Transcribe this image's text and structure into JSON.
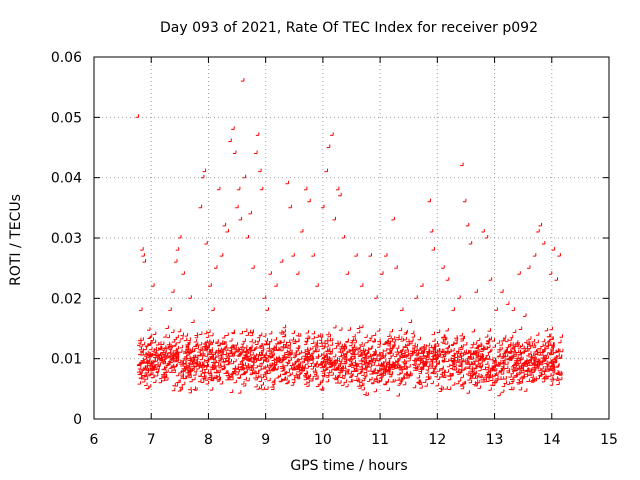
{
  "chart_data": {
    "type": "scatter",
    "title": "Day 093 of 2021, Rate Of TEC Index for receiver p092",
    "xlabel": "GPS time / hours",
    "ylabel": "ROTI / TECUs",
    "xlim": [
      6,
      15
    ],
    "ylim": [
      0,
      0.06
    ],
    "xticks": [
      6,
      7,
      8,
      9,
      10,
      11,
      12,
      13,
      14,
      15
    ],
    "yticks": [
      0,
      0.01,
      0.02,
      0.03,
      0.04,
      0.05,
      0.06
    ],
    "xtick_labels": [
      "6",
      "7",
      "8",
      "9",
      "10",
      "11",
      "12",
      "13",
      "14",
      "15"
    ],
    "ytick_labels": [
      "0",
      "0.01",
      "0.02",
      "0.03",
      "0.04",
      "0.05",
      "0.06"
    ],
    "grid": true,
    "marker": "plus",
    "color": "#ff0000",
    "series": [
      {
        "name": "p092",
        "points": [
          [
            6.78,
            0.05
          ],
          [
            6.8,
            0.009
          ],
          [
            6.82,
            0.013
          ],
          [
            6.84,
            0.018
          ],
          [
            6.86,
            0.028
          ],
          [
            6.88,
            0.027
          ],
          [
            6.9,
            0.026
          ],
          [
            6.92,
            0.007
          ],
          [
            6.94,
            0.012
          ],
          [
            6.96,
            0.005
          ],
          [
            7.05,
            0.022
          ],
          [
            7.08,
            0.014
          ],
          [
            7.12,
            0.009
          ],
          [
            7.18,
            0.006
          ],
          [
            7.22,
            0.011
          ],
          [
            7.3,
            0.015
          ],
          [
            7.35,
            0.018
          ],
          [
            7.4,
            0.021
          ],
          [
            7.45,
            0.026
          ],
          [
            7.48,
            0.028
          ],
          [
            7.52,
            0.03
          ],
          [
            7.58,
            0.024
          ],
          [
            7.62,
            0.013
          ],
          [
            7.7,
            0.02
          ],
          [
            7.75,
            0.016
          ],
          [
            7.8,
            0.012
          ],
          [
            7.88,
            0.035
          ],
          [
            7.92,
            0.04
          ],
          [
            7.95,
            0.041
          ],
          [
            7.98,
            0.029
          ],
          [
            8.05,
            0.022
          ],
          [
            8.1,
            0.018
          ],
          [
            8.15,
            0.025
          ],
          [
            8.2,
            0.038
          ],
          [
            8.25,
            0.027
          ],
          [
            8.3,
            0.032
          ],
          [
            8.35,
            0.031
          ],
          [
            8.4,
            0.046
          ],
          [
            8.45,
            0.048
          ],
          [
            8.48,
            0.044
          ],
          [
            8.52,
            0.035
          ],
          [
            8.55,
            0.038
          ],
          [
            8.58,
            0.033
          ],
          [
            8.62,
            0.056
          ],
          [
            8.65,
            0.04
          ],
          [
            8.7,
            0.03
          ],
          [
            8.75,
            0.034
          ],
          [
            8.8,
            0.025
          ],
          [
            8.85,
            0.044
          ],
          [
            8.88,
            0.047
          ],
          [
            8.92,
            0.041
          ],
          [
            8.95,
            0.038
          ],
          [
            9.0,
            0.02
          ],
          [
            9.05,
            0.018
          ],
          [
            9.1,
            0.024
          ],
          [
            9.2,
            0.022
          ],
          [
            9.3,
            0.026
          ],
          [
            9.4,
            0.039
          ],
          [
            9.45,
            0.035
          ],
          [
            9.5,
            0.027
          ],
          [
            9.58,
            0.024
          ],
          [
            9.65,
            0.031
          ],
          [
            9.72,
            0.038
          ],
          [
            9.78,
            0.036
          ],
          [
            9.85,
            0.027
          ],
          [
            9.92,
            0.022
          ],
          [
            10.02,
            0.035
          ],
          [
            10.08,
            0.041
          ],
          [
            10.12,
            0.045
          ],
          [
            10.18,
            0.047
          ],
          [
            10.22,
            0.033
          ],
          [
            10.28,
            0.038
          ],
          [
            10.32,
            0.037
          ],
          [
            10.38,
            0.03
          ],
          [
            10.45,
            0.024
          ],
          [
            10.6,
            0.027
          ],
          [
            10.7,
            0.022
          ],
          [
            10.85,
            0.027
          ],
          [
            10.95,
            0.02
          ],
          [
            11.05,
            0.024
          ],
          [
            11.12,
            0.027
          ],
          [
            11.25,
            0.033
          ],
          [
            11.3,
            0.025
          ],
          [
            11.4,
            0.018
          ],
          [
            11.55,
            0.016
          ],
          [
            11.65,
            0.02
          ],
          [
            11.75,
            0.022
          ],
          [
            11.88,
            0.036
          ],
          [
            11.92,
            0.031
          ],
          [
            11.95,
            0.028
          ],
          [
            12.12,
            0.025
          ],
          [
            12.2,
            0.023
          ],
          [
            12.3,
            0.018
          ],
          [
            12.4,
            0.02
          ],
          [
            12.45,
            0.042
          ],
          [
            12.5,
            0.036
          ],
          [
            12.55,
            0.032
          ],
          [
            12.6,
            0.029
          ],
          [
            12.7,
            0.021
          ],
          [
            12.82,
            0.031
          ],
          [
            12.88,
            0.03
          ],
          [
            12.95,
            0.023
          ],
          [
            13.05,
            0.018
          ],
          [
            13.15,
            0.021
          ],
          [
            13.25,
            0.019
          ],
          [
            13.35,
            0.018
          ],
          [
            13.45,
            0.024
          ],
          [
            13.55,
            0.017
          ],
          [
            13.62,
            0.025
          ],
          [
            13.72,
            0.027
          ],
          [
            13.78,
            0.031
          ],
          [
            13.82,
            0.032
          ],
          [
            13.88,
            0.029
          ],
          [
            14.0,
            0.024
          ],
          [
            14.05,
            0.028
          ],
          [
            14.1,
            0.023
          ],
          [
            14.15,
            0.027
          ]
        ]
      }
    ],
    "dense_band": {
      "x_range": [
        6.8,
        14.2
      ],
      "y_range": [
        0.003,
        0.016
      ],
      "note": "many overlapping points near baseline"
    }
  }
}
